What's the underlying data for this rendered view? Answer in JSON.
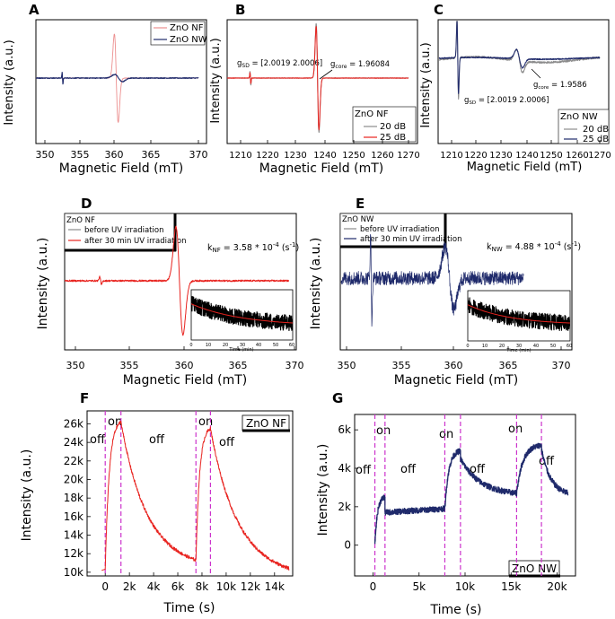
{
  "colors": {
    "red": "#e8231f",
    "light_red": "#ec8f8f",
    "navy": "#1f2a6b",
    "gray": "#8c8c8c",
    "dark": "#222222",
    "black": "#000000",
    "magenta": "#cc33cc"
  },
  "chart_data": [
    {
      "panel": "A",
      "type": "line",
      "xlabel": "Magnetic Field (mT)",
      "ylabel": "Intensity (a.u.)",
      "xlim": [
        348,
        370
      ],
      "ylim": [
        -1,
        1
      ],
      "xticks": [
        "350",
        "355",
        "360",
        "365",
        "370"
      ],
      "legend": [
        "ZnO NF",
        "ZnO NW"
      ],
      "series": [
        {
          "name": "ZnO NF",
          "color": "light_red",
          "peaks": [
            {
              "center": 359.3,
              "width": 0.25,
              "amp": 0.85
            },
            {
              "center": 352.3,
              "width": 0.06,
              "amp": 0.05
            }
          ]
        },
        {
          "name": "ZnO NW",
          "color": "navy",
          "peaks": [
            {
              "center": 359.6,
              "width": 0.5,
              "amp": 0.07
            },
            {
              "center": 352.3,
              "width": 0.05,
              "amp": 0.12
            }
          ]
        }
      ]
    },
    {
      "panel": "B",
      "type": "line",
      "xlabel": "Magnetic Field (mT)",
      "ylabel": "Intensity (a.u.)",
      "xlim": [
        1205,
        1270
      ],
      "ylim": [
        -1,
        1
      ],
      "xticks": [
        "1210",
        "1220",
        "1230",
        "1240",
        "1250",
        "1260",
        "1270"
      ],
      "legend_title": "ZnO NF",
      "legend": [
        "20 dB",
        "25 dB"
      ],
      "annotations": {
        "g_sd": "g",
        "g_sd_sub": "SD",
        "g_sd_val": " = [2.0019 2.0006]",
        "g_core": "g",
        "g_core_sub": "core",
        "g_core_val": " = 1.96084"
      },
      "series": [
        {
          "name": "20 dB",
          "color": "gray",
          "peaks": [
            {
              "center": 1237.5,
              "width": 0.5,
              "amp": 0.95
            },
            {
              "center": 1213.5,
              "width": 0.15,
              "amp": 0.12
            }
          ]
        },
        {
          "name": "25 dB",
          "color": "red",
          "peaks": [
            {
              "center": 1237.5,
              "width": 0.5,
              "amp": 0.9
            },
            {
              "center": 1213.5,
              "width": 0.15,
              "amp": 0.1
            }
          ]
        }
      ]
    },
    {
      "panel": "C",
      "type": "line",
      "xlabel": "Magnetic Field (mT)",
      "ylabel": "Intensity (a.u.)",
      "xlim": [
        1205,
        1270
      ],
      "ylim": [
        -1,
        1
      ],
      "xticks": [
        "1210",
        "1220",
        "1230",
        "1240",
        "1250",
        "1260",
        "1270"
      ],
      "legend_title": "ZnO NW",
      "legend": [
        "20 dB",
        "25 dB"
      ],
      "annotations": {
        "g_sd": "g",
        "g_sd_sub": "SD",
        "g_sd_val": " = [2.0019 2.0006]",
        "g_core": "g",
        "g_core_sub": "core",
        "g_core_val": " = 1.9586"
      },
      "series": [
        {
          "name": "20 dB",
          "color": "gray",
          "peaks": [
            {
              "center": 1212.5,
              "width": 0.3,
              "amp": 0.9
            },
            {
              "center": 1237.5,
              "width": 1.2,
              "amp": 0.25
            }
          ]
        },
        {
          "name": "25 dB",
          "color": "navy",
          "peaks": [
            {
              "center": 1212.5,
              "width": 0.3,
              "amp": 0.8
            },
            {
              "center": 1237.5,
              "width": 1.2,
              "amp": 0.2
            }
          ]
        }
      ]
    },
    {
      "panel": "D",
      "type": "line",
      "xlabel": "Magnetic Field (mT)",
      "ylabel": "Intensity (a.u.)",
      "xlim": [
        348,
        370
      ],
      "ylim": [
        -1,
        1
      ],
      "xticks": [
        "350",
        "355",
        "360",
        "365",
        "370"
      ],
      "legend_title": "ZnO NF",
      "legend": [
        "before UV irradiation",
        "after 30 min UV irradiation"
      ],
      "rate_label": "k",
      "rate_sub": "NF",
      "rate_value": " = 3.58 * 10",
      "rate_exp": "-4",
      "rate_unit": " (s",
      "rate_unit_exp": "-1",
      "rate_close": ")",
      "inset": {
        "xlabel": "Time (min)",
        "xlim": [
          0,
          60
        ],
        "xticks": [
          "0",
          "10",
          "20",
          "30",
          "40",
          "50",
          "60"
        ],
        "decay": {
          "start": 0.72,
          "end": 0.28,
          "tau": 30
        }
      },
      "series": [
        {
          "name": "before UV irradiation",
          "color": "gray"
        },
        {
          "name": "after 30 min UV irradiation",
          "color": "red",
          "peaks": [
            {
              "center": 359.5,
              "width": 0.32,
              "amp": 0.8
            },
            {
              "center": 352.3,
              "width": 0.08,
              "amp": 0.06
            }
          ]
        }
      ]
    },
    {
      "panel": "E",
      "type": "line",
      "xlabel": "Magnetic Field (mT)",
      "ylabel": "Intensity (a.u.)",
      "xlim": [
        348,
        372
      ],
      "ylim": [
        -1,
        1
      ],
      "xticks": [
        "350",
        "355",
        "360",
        "365",
        "370"
      ],
      "legend_title": "ZnO NW",
      "legend": [
        "before UV irradiation",
        "after 30 min UV irradiation"
      ],
      "rate_label": "k",
      "rate_sub": "NW",
      "rate_value": " = 4.88 * 10",
      "rate_exp": "-4",
      "rate_unit": " (s",
      "rate_unit_exp": "-1",
      "rate_close": ")",
      "inset": {
        "xlabel": "Time (min)",
        "xlim": [
          0,
          60
        ],
        "xticks": [
          "0",
          "10",
          "20",
          "30",
          "40",
          "50",
          "60"
        ],
        "decay": {
          "start": 0.72,
          "end": 0.32,
          "tau": 25
        }
      },
      "series": [
        {
          "name": "before UV irradiation",
          "color": "gray"
        },
        {
          "name": "after 30 min UV irradiation",
          "color": "navy",
          "peaks": [
            {
              "center": 359.6,
              "width": 0.4,
              "amp": 0.45
            },
            {
              "center": 352.3,
              "width": 0.06,
              "amp": 0.6
            }
          ]
        }
      ]
    },
    {
      "panel": "F",
      "type": "line",
      "xlabel": "Time (s)",
      "ylabel": "Intensity (a.u.)",
      "xlim": [
        -1500,
        15500
      ],
      "ylim": [
        9600,
        27400
      ],
      "xticks": [
        {
          "v": 0,
          "l": "0"
        },
        {
          "v": 2000,
          "l": "2k"
        },
        {
          "v": 4000,
          "l": "4k"
        },
        {
          "v": 6000,
          "l": "6k"
        },
        {
          "v": 8000,
          "l": "8k"
        },
        {
          "v": 10000,
          "l": "10k"
        },
        {
          "v": 12000,
          "l": "12k"
        },
        {
          "v": 14000,
          "l": "14k"
        }
      ],
      "yticks": [
        {
          "v": 10000,
          "l": "10k"
        },
        {
          "v": 12000,
          "l": "12k"
        },
        {
          "v": 14000,
          "l": "14k"
        },
        {
          "v": 16000,
          "l": "16k"
        },
        {
          "v": 18000,
          "l": "18k"
        },
        {
          "v": 20000,
          "l": "20k"
        },
        {
          "v": 22000,
          "l": "22k"
        },
        {
          "v": 24000,
          "l": "24k"
        },
        {
          "v": 26000,
          "l": "26k"
        }
      ],
      "tag": "ZnO NF",
      "labels": [
        "off",
        "on",
        "off",
        "on",
        "off"
      ],
      "switch_times": [
        0,
        1300,
        7500,
        8700
      ],
      "baseline": 10200,
      "segments": [
        {
          "t0": 0,
          "t1": 1300,
          "kind": "rise",
          "from": 10200,
          "to": 26200
        },
        {
          "t0": 1300,
          "t1": 7500,
          "kind": "decay",
          "from": 26200,
          "to": 11300
        },
        {
          "t0": 7500,
          "t1": 8700,
          "kind": "rise",
          "from": 11300,
          "to": 25500
        },
        {
          "t0": 8700,
          "t1": 15200,
          "kind": "decay",
          "from": 25500,
          "to": 10400
        }
      ]
    },
    {
      "panel": "G",
      "type": "line",
      "xlabel": "Time (s)",
      "ylabel": "Intensity (a.u.)",
      "xlim": [
        -2000,
        22000
      ],
      "ylim": [
        -1600,
        6800
      ],
      "xticks": [
        {
          "v": 0,
          "l": "0"
        },
        {
          "v": 5000,
          "l": "5k"
        },
        {
          "v": 10000,
          "l": "10k"
        },
        {
          "v": 15000,
          "l": "15k"
        },
        {
          "v": 20000,
          "l": "20k"
        }
      ],
      "yticks": [
        {
          "v": 0,
          "l": "0"
        },
        {
          "v": 2000,
          "l": "2k"
        },
        {
          "v": 4000,
          "l": "4k"
        },
        {
          "v": 6000,
          "l": "6k"
        }
      ],
      "tag": "ZnO NW",
      "labels": [
        "off",
        "on",
        "off",
        "on",
        "off",
        "on",
        "off"
      ],
      "switch_times": [
        200,
        1300,
        7800,
        9500,
        15600,
        18300
      ],
      "segments": [
        {
          "t0": 200,
          "t1": 1300,
          "kind": "rise",
          "from": 0,
          "to": 2500
        },
        {
          "t0": 1300,
          "t1": 7800,
          "kind": "flat",
          "from": 1700,
          "to": 1900
        },
        {
          "t0": 7800,
          "t1": 9500,
          "kind": "rise",
          "from": 1900,
          "to": 4900
        },
        {
          "t0": 9500,
          "t1": 15600,
          "kind": "decay",
          "from": 4500,
          "to": 2700
        },
        {
          "t0": 15600,
          "t1": 18300,
          "kind": "rise",
          "from": 2700,
          "to": 5200
        },
        {
          "t0": 18300,
          "t1": 21200,
          "kind": "decay",
          "from": 5000,
          "to": 2700
        }
      ]
    }
  ]
}
